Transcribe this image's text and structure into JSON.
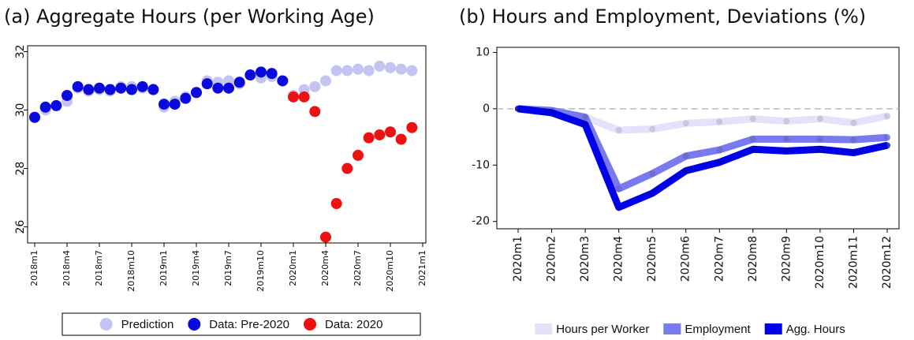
{
  "chart_data": [
    {
      "type": "scatter",
      "title": "(a) Aggregate Hours (per Working Age)",
      "categories": [
        "2018m1",
        null,
        null,
        "2018m4",
        null,
        null,
        "2018m7",
        null,
        null,
        "2018m10",
        null,
        null,
        "2019m1",
        null,
        null,
        "2019m4",
        null,
        null,
        "2019m7",
        null,
        null,
        "2019m10",
        null,
        null,
        "2020m1",
        null,
        null,
        "2020m4",
        null,
        null,
        "2020m7",
        null,
        null,
        "2020m10",
        null,
        null,
        "2021m1"
      ],
      "series": [
        {
          "name": "Prediction",
          "color": "#c4c4f2",
          "values": [
            29.75,
            30.0,
            30.15,
            30.3,
            30.75,
            30.65,
            30.7,
            30.65,
            30.8,
            30.8,
            30.75,
            30.7,
            30.1,
            30.3,
            30.45,
            30.6,
            31.0,
            30.95,
            31.0,
            30.9,
            31.2,
            31.1,
            31.15,
            31.0,
            30.5,
            30.7,
            30.8,
            31.0,
            31.35,
            31.35,
            31.4,
            31.35,
            31.5,
            31.45,
            31.4,
            31.35,
            null
          ]
        },
        {
          "name": "Data: Pre-2020",
          "color": "#0a0adf",
          "values": [
            29.75,
            30.1,
            30.15,
            30.5,
            30.8,
            30.7,
            30.75,
            30.7,
            30.75,
            30.7,
            30.8,
            30.7,
            30.2,
            30.2,
            30.4,
            30.6,
            30.9,
            30.75,
            30.75,
            30.95,
            31.2,
            31.3,
            31.25,
            31.0,
            null,
            null,
            null,
            null,
            null,
            null,
            null,
            null,
            null,
            null,
            null,
            null,
            null
          ]
        },
        {
          "name": "Data: 2020",
          "color": "#ee1111",
          "values": [
            null,
            null,
            null,
            null,
            null,
            null,
            null,
            null,
            null,
            null,
            null,
            null,
            null,
            null,
            null,
            null,
            null,
            null,
            null,
            null,
            null,
            null,
            null,
            null,
            30.45,
            30.45,
            29.95,
            25.65,
            26.8,
            28.0,
            28.45,
            29.05,
            29.15,
            29.25,
            29.0,
            29.4,
            null
          ]
        }
      ],
      "ylim": [
        25.45,
        32.2
      ],
      "yticks": [
        26,
        28,
        30,
        32
      ],
      "legend": "bottom"
    },
    {
      "type": "line",
      "title": "(b) Hours and Employment, Deviations (%)",
      "categories": [
        "2020m1",
        "2020m2",
        "2020m3",
        "2020m4",
        "2020m5",
        "2020m6",
        "2020m7",
        "2020m8",
        "2020m9",
        "2020m10",
        "2020m11",
        "2020m12"
      ],
      "series": [
        {
          "name": "Hours per Worker",
          "color": "#e2e2fa",
          "values": [
            0,
            -0.3,
            -1.5,
            -3.8,
            -3.6,
            -2.6,
            -2.3,
            -1.8,
            -2.2,
            -1.8,
            -2.5,
            -1.3
          ]
        },
        {
          "name": "Employment",
          "color": "#7a7af0",
          "values": [
            0,
            -0.3,
            -1.5,
            -14.2,
            -11.5,
            -8.4,
            -7.3,
            -5.4,
            -5.4,
            -5.4,
            -5.5,
            -5.1
          ]
        },
        {
          "name": "Agg. Hours",
          "color": "#0000e8",
          "values": [
            0,
            -0.7,
            -2.8,
            -17.5,
            -15.0,
            -11.0,
            -9.5,
            -7.2,
            -7.5,
            -7.2,
            -7.8,
            -6.5
          ]
        }
      ],
      "ylim": [
        -21.3,
        10.9
      ],
      "yticks": [
        -20,
        -10,
        0,
        10
      ],
      "zero_line": true,
      "legend": "bottom"
    }
  ]
}
